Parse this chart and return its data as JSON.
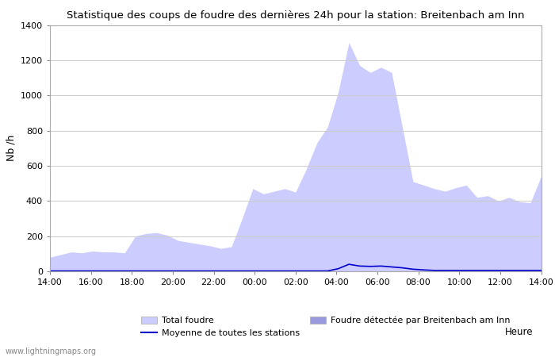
{
  "title": "Statistique des coups de foudre des dernières 24h pour la station: Breitenbach am Inn",
  "ylabel": "Nb /h",
  "watermark": "www.lightningmaps.org",
  "ylim": [
    0,
    1400
  ],
  "yticks": [
    0,
    200,
    400,
    600,
    800,
    1000,
    1200,
    1400
  ],
  "xtick_labels": [
    "14:00",
    "16:00",
    "18:00",
    "20:00",
    "22:00",
    "00:00",
    "02:00",
    "04:00",
    "06:00",
    "08:00",
    "10:00",
    "12:00",
    "14:00"
  ],
  "color_total": "#ccccff",
  "color_local": "#9999dd",
  "color_mean": "#0000cc",
  "bg_color": "#ffffff",
  "grid_color": "#cccccc",
  "total_foudre": [
    80,
    95,
    110,
    105,
    115,
    110,
    110,
    105,
    200,
    215,
    220,
    205,
    175,
    165,
    155,
    145,
    130,
    140,
    300,
    470,
    440,
    455,
    470,
    450,
    580,
    730,
    820,
    1020,
    1300,
    1170,
    1130,
    1160,
    1130,
    820,
    510,
    490,
    470,
    455,
    475,
    490,
    420,
    430,
    400,
    420,
    395,
    390,
    540
  ],
  "local_foudre": [
    2,
    2,
    2,
    2,
    2,
    2,
    2,
    2,
    2,
    2,
    2,
    2,
    2,
    2,
    2,
    2,
    2,
    2,
    2,
    2,
    2,
    2,
    2,
    2,
    2,
    2,
    2,
    2,
    2,
    2,
    2,
    2,
    2,
    2,
    2,
    2,
    2,
    2,
    2,
    2,
    2,
    2,
    2,
    2,
    2,
    2,
    2
  ],
  "mean_line": [
    2,
    2,
    2,
    2,
    2,
    2,
    2,
    2,
    2,
    2,
    2,
    2,
    2,
    2,
    2,
    2,
    2,
    2,
    2,
    2,
    2,
    2,
    2,
    2,
    2,
    2,
    2,
    15,
    40,
    30,
    28,
    30,
    25,
    20,
    12,
    8,
    5,
    5,
    5,
    5,
    5,
    5,
    5,
    5,
    5,
    5,
    5
  ]
}
